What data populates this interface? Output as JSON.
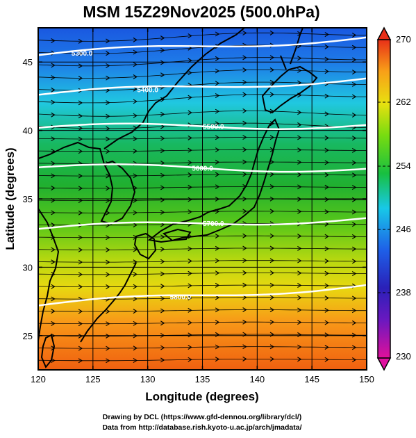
{
  "title": "MSM 15Z29Nov2025 (500.0hPa)",
  "xaxis": {
    "label": "Longitude (degrees)",
    "range": [
      120,
      150
    ],
    "ticks": [
      "120",
      "125",
      "130",
      "135",
      "140",
      "145",
      "150"
    ]
  },
  "yaxis": {
    "label": "Latitude  (degrees)",
    "range": [
      22.5,
      47.5
    ],
    "ticks": [
      "25",
      "30",
      "35",
      "40",
      "45"
    ]
  },
  "colorbar": {
    "range": [
      230,
      270
    ],
    "labels": [
      "270",
      "262",
      "254",
      "246",
      "238",
      "230"
    ],
    "colors": [
      "#e0109a",
      "#2a20b8",
      "#1e60e8",
      "#18c8e8",
      "#18c040",
      "#78dc10",
      "#e8e010",
      "#f8a018",
      "#f05010",
      "#e83018"
    ]
  },
  "contours": [
    {
      "label": "5300.0"
    },
    {
      "label": "5400.0"
    },
    {
      "label": "5500.0"
    },
    {
      "label": "5600.0"
    },
    {
      "label": "5700.0"
    },
    {
      "label": "5800.0"
    }
  ],
  "credits": {
    "line1": "Drawing by DCL (https://www.gfd-dennou.org/library/dcl/)",
    "line2": "Data from http://database.rish.kyoto-u.ac.jp/arch/jmadata/"
  },
  "chart_data": {
    "type": "heatmap",
    "variable": "temperature with geopotential height contours and wind streamlines",
    "level": "500.0hPa",
    "xlim": [
      120,
      150
    ],
    "ylim": [
      22.5,
      47.5
    ],
    "colorbar_range": [
      230,
      270
    ],
    "temperature_gradient": [
      {
        "lat": 47.5,
        "value": 240
      },
      {
        "lat": 45,
        "value": 242
      },
      {
        "lat": 42,
        "value": 247
      },
      {
        "lat": 40,
        "value": 252
      },
      {
        "lat": 37,
        "value": 255
      },
      {
        "lat": 34,
        "value": 257
      },
      {
        "lat": 31,
        "value": 260
      },
      {
        "lat": 28,
        "value": 263
      },
      {
        "lat": 25,
        "value": 265
      },
      {
        "lat": 22.5,
        "value": 267
      }
    ],
    "height_contours": [
      {
        "value": 5300.0,
        "lat_west": 45.5,
        "lat_east": 46.8
      },
      {
        "value": 5400.0,
        "lat_west": 42.6,
        "lat_east": 43.8
      },
      {
        "value": 5500.0,
        "lat_west": 40.2,
        "lat_east": 40.4
      },
      {
        "value": 5600.0,
        "lat_west": 37.3,
        "lat_east": 37.2
      },
      {
        "value": 5700.0,
        "lat_west": 32.8,
        "lat_east": 33.6
      },
      {
        "value": 5800.0,
        "lat_west": 27.2,
        "lat_east": 28.7
      }
    ],
    "wind_direction": "westerly"
  }
}
